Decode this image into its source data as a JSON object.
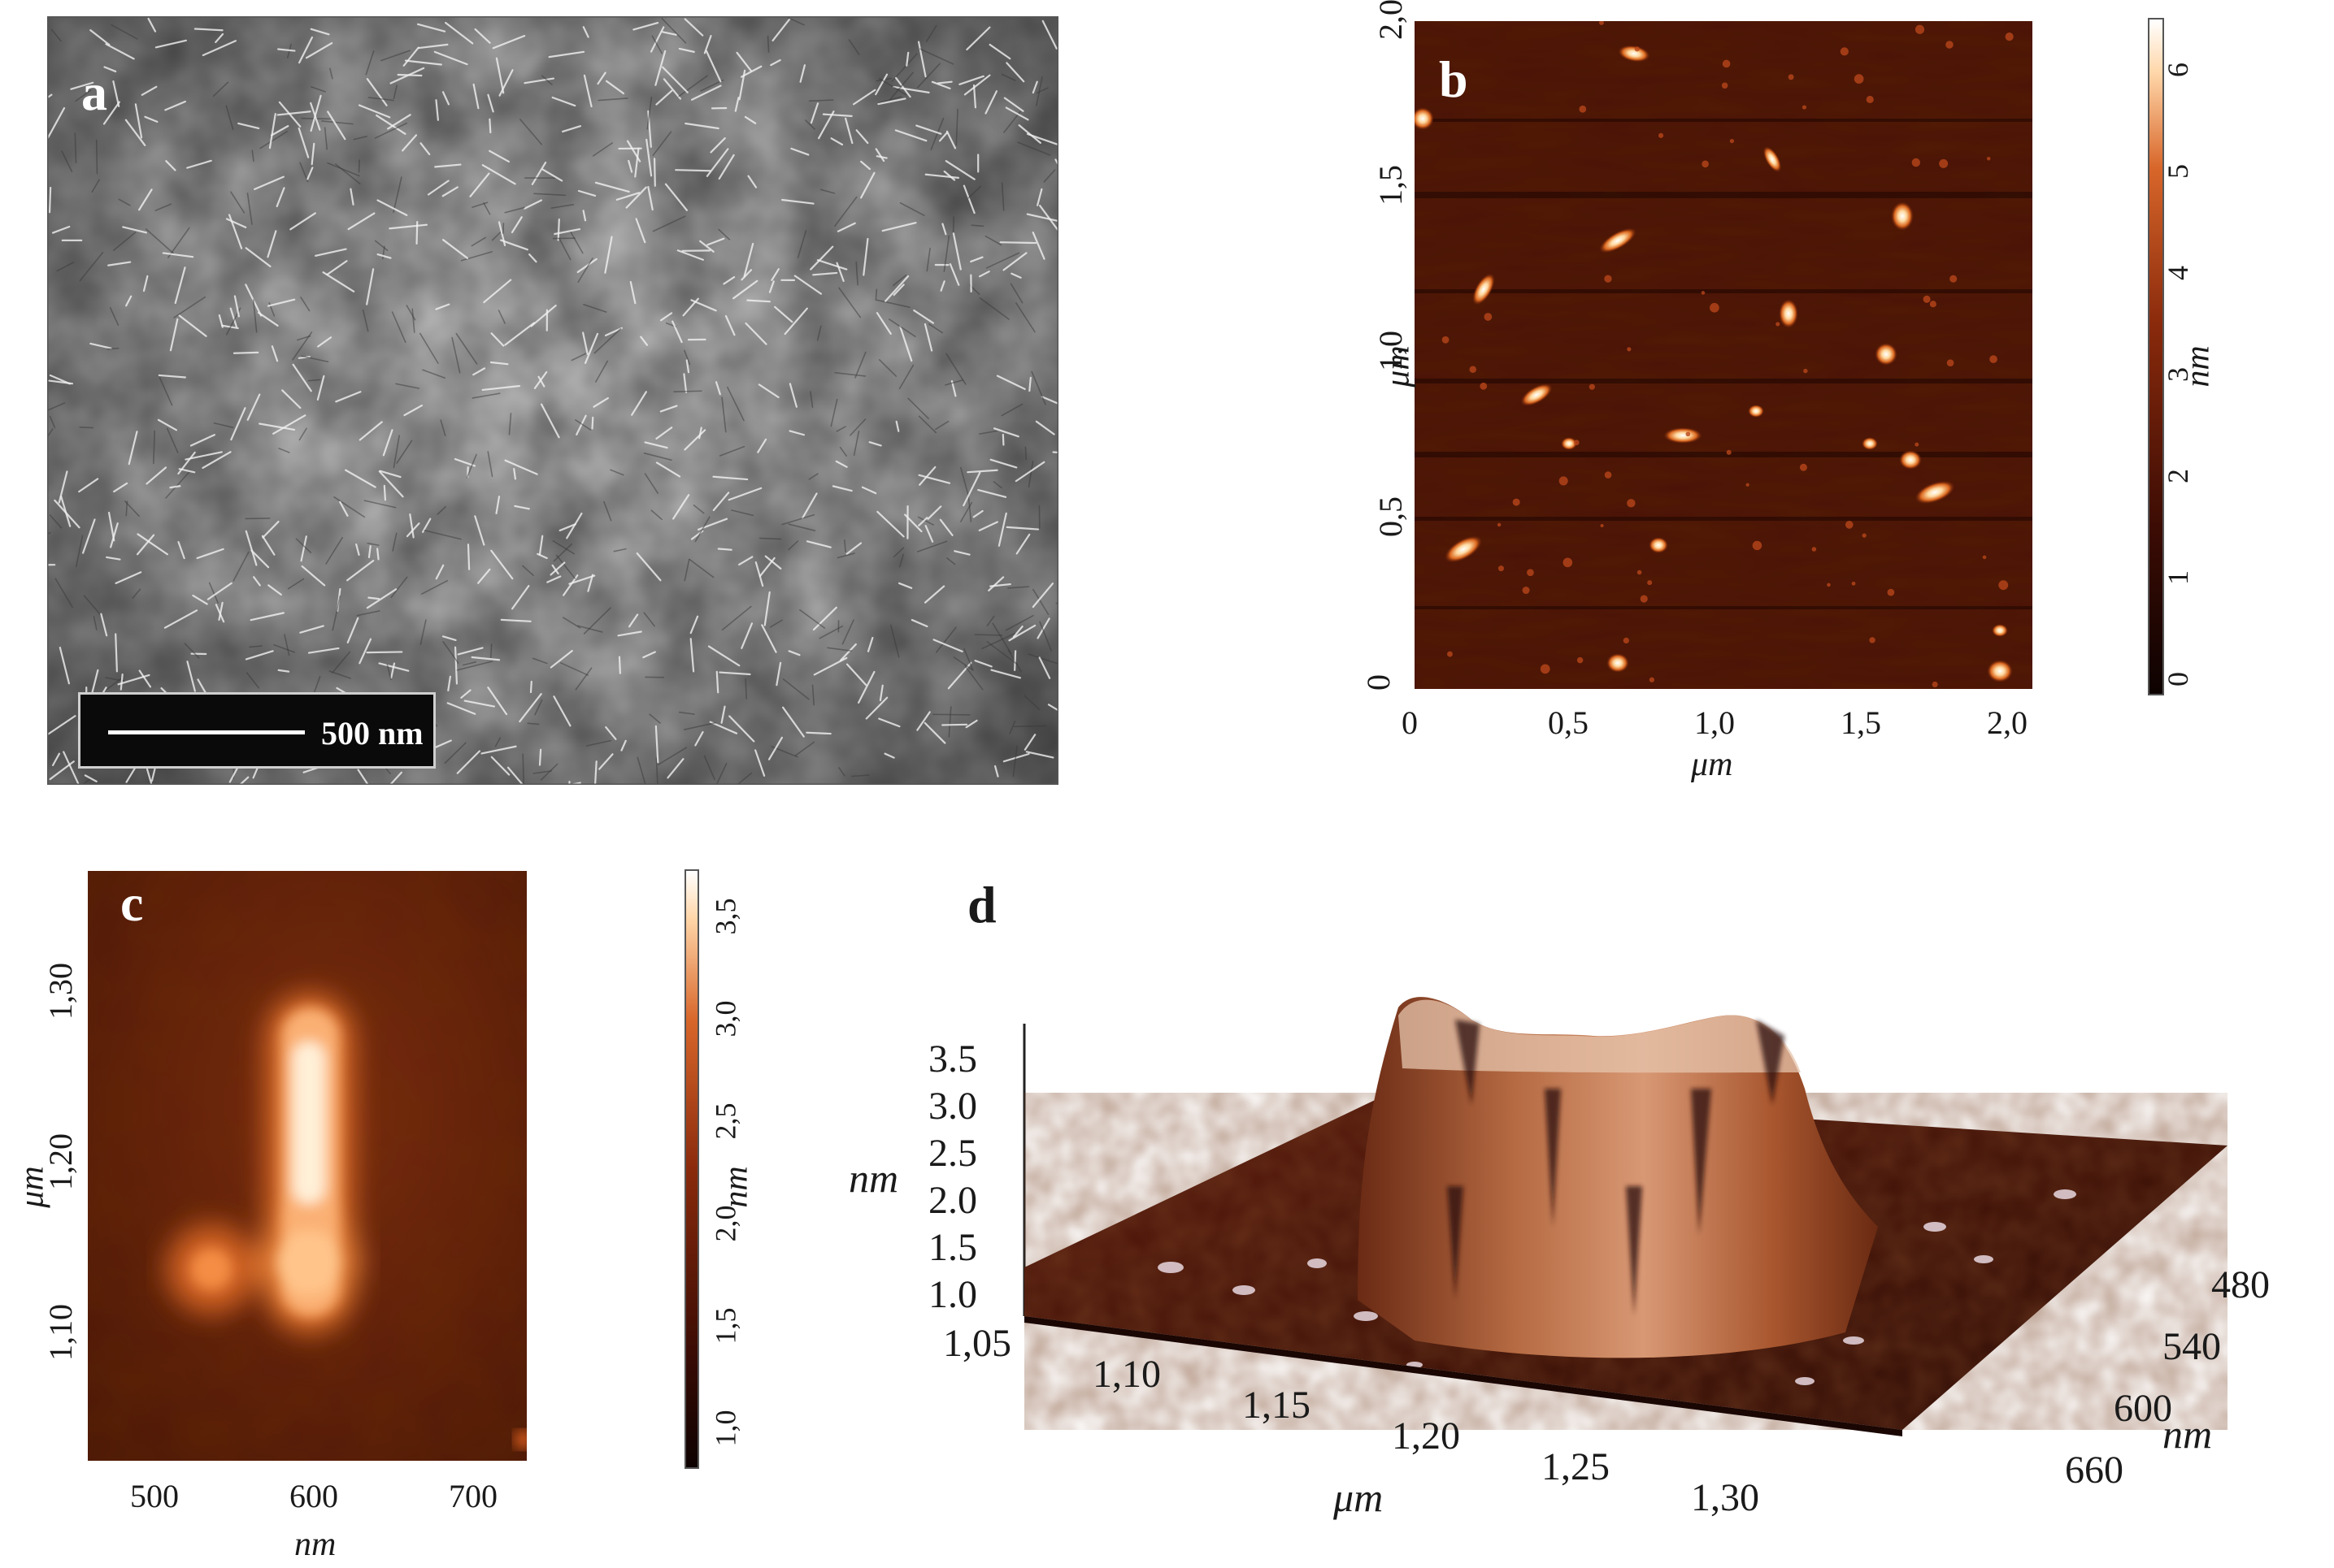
{
  "panels": {
    "a": {
      "label": "a",
      "scale_bar": "500 nm"
    },
    "b": {
      "label": "b",
      "x_ticks": [
        "0",
        "0,5",
        "1,0",
        "1,5",
        "2,0"
      ],
      "y_ticks": [
        "0",
        "0,5",
        "1,0",
        "1,5",
        "2,0"
      ],
      "x_unit": "μm",
      "y_unit": "μm",
      "colorbar_ticks": [
        "0",
        "1",
        "2",
        "3",
        "4",
        "5",
        "6"
      ],
      "colorbar_unit": "nm"
    },
    "c": {
      "label": "c",
      "x_ticks": [
        "500",
        "600",
        "700"
      ],
      "y_ticks": [
        "1,10",
        "1,20",
        "1,30"
      ],
      "x_unit": "nm",
      "y_unit": "μm",
      "colorbar_ticks": [
        "1,0",
        "1,5",
        "2,0",
        "2,5",
        "3,0",
        "3,5"
      ],
      "colorbar_unit": "nm"
    },
    "d": {
      "label": "d",
      "z_ticks": [
        "1.0",
        "1.5",
        "2.0",
        "2.5",
        "3.0",
        "3.5"
      ],
      "z_unit": "nm",
      "x_ticks": [
        "1,05",
        "1,10",
        "1,15",
        "1,20",
        "1,25",
        "1,30"
      ],
      "x_unit": "μm",
      "y_ticks": [
        "480",
        "540",
        "600",
        "660"
      ],
      "y_unit": "nm"
    }
  },
  "colors": {
    "afm_dark": "#3c0c04",
    "afm_mid": "#a33a12",
    "afm_bright": "#ffffff",
    "tem_gray": "#9a9a9a"
  }
}
